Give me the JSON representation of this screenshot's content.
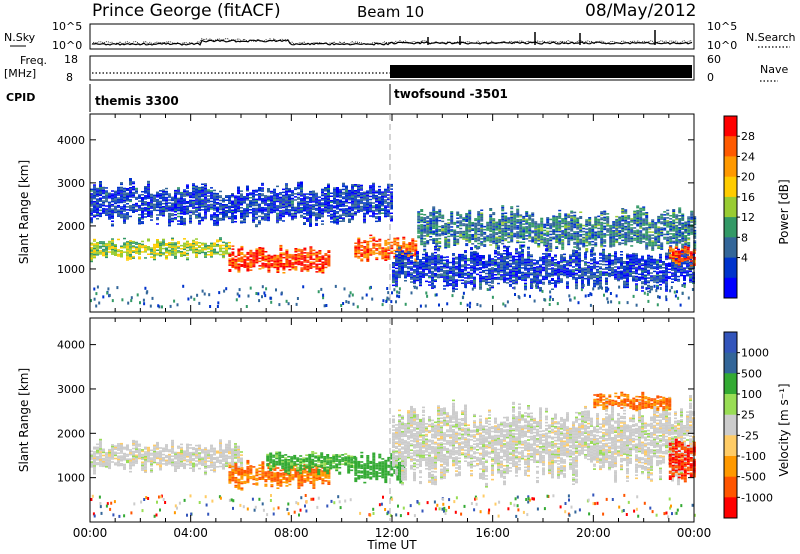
{
  "header": {
    "station": "Prince George (fitACF)",
    "beam": "Beam 10",
    "date": "08/May/2012"
  },
  "top_panels": {
    "nsky_label": "N.Sky",
    "nsearch_label": "N.Search",
    "freq_label_1": "Freq.",
    "freq_label_2": "[MHz]",
    "nave_label": "Nave",
    "cpid_label": "CPID",
    "noise_left_ticks": [
      "10^5",
      "10^0"
    ],
    "noise_right_ticks": [
      "10^5",
      "10^0"
    ],
    "freq_ticks": [
      "18",
      "8"
    ],
    "nave_ticks": [
      "60",
      "0"
    ],
    "cpid_segments": [
      {
        "name": "themis 3300",
        "start_hour": 0,
        "end_hour": 12
      },
      {
        "name": "twofsound -3501",
        "start_hour": 12,
        "end_hour": 24
      }
    ]
  },
  "chart_data": [
    {
      "type": "heatmap",
      "panel": "power",
      "xlabel": "",
      "ylabel": "Slant Range [km]",
      "xlim_hours": [
        0,
        24
      ],
      "ylim_km": [
        0,
        4600
      ],
      "yticks": [
        "1000",
        "2000",
        "3000",
        "4000"
      ],
      "colorbar": {
        "label": "Power [dB]",
        "ticks": [
          "28",
          "24",
          "20",
          "16",
          "12",
          "8",
          "4"
        ],
        "colors": [
          "#ff0000",
          "#ff5a00",
          "#ff9900",
          "#ffcc00",
          "#99cc33",
          "#339966",
          "#336699",
          "#0033cc",
          "#0000ff"
        ]
      },
      "bands": [
        {
          "start_hour": 0,
          "end_hour": 5.5,
          "center_km": 1450,
          "width_km": 250,
          "level_db": 16
        },
        {
          "start_hour": 5.5,
          "end_hour": 9.5,
          "center_km": 1200,
          "width_km": 300,
          "level_db": 28
        },
        {
          "start_hour": 10.5,
          "end_hour": 13,
          "center_km": 1450,
          "width_km": 300,
          "level_db": 26
        },
        {
          "start_hour": 13,
          "end_hour": 24,
          "center_km": 1900,
          "width_km": 500,
          "level_db": 10
        },
        {
          "start_hour": 0,
          "end_hour": 12,
          "center_km": 2500,
          "width_km": 500,
          "level_db": 6
        },
        {
          "start_hour": 12,
          "end_hour": 24,
          "center_km": 1000,
          "width_km": 500,
          "level_db": 6
        },
        {
          "start_hour": 23,
          "end_hour": 24,
          "center_km": 1300,
          "width_km": 250,
          "level_db": 26
        }
      ]
    },
    {
      "type": "heatmap",
      "panel": "velocity",
      "xlabel": "Time UT",
      "ylabel": "Slant Range [km]",
      "xlim_hours": [
        0,
        24
      ],
      "ylim_km": [
        0,
        4600
      ],
      "xticks": [
        "00:00",
        "04:00",
        "08:00",
        "12:00",
        "16:00",
        "20:00",
        "00:00"
      ],
      "yticks": [
        "1000",
        "2000",
        "3000",
        "4000"
      ],
      "colorbar": {
        "label": "Velocity [m s⁻¹]",
        "ticks": [
          "1000",
          "500",
          "100",
          "25",
          "-25",
          "-100",
          "-500",
          "-1000"
        ],
        "colors": [
          "#3355bb",
          "#336699",
          "#33aa33",
          "#99dd55",
          "#cccccc",
          "#ffcc66",
          "#ff9900",
          "#ff5500",
          "#ff0000"
        ]
      },
      "bands": [
        {
          "start_hour": 0,
          "end_hour": 6,
          "center_km": 1450,
          "width_km": 350,
          "velocity": 0
        },
        {
          "start_hour": 5.5,
          "end_hour": 9.5,
          "center_km": 1050,
          "width_km": 300,
          "velocity": -500
        },
        {
          "start_hour": 7,
          "end_hour": 10.5,
          "center_km": 1350,
          "width_km": 250,
          "velocity": 200
        },
        {
          "start_hour": 10.5,
          "end_hour": 12.5,
          "center_km": 1200,
          "width_km": 350,
          "velocity": 300
        },
        {
          "start_hour": 12,
          "end_hour": 24,
          "center_km": 1800,
          "width_km": 900,
          "velocity": 0
        },
        {
          "start_hour": 20,
          "end_hour": 23,
          "center_km": 2700,
          "width_km": 200,
          "velocity": -500
        },
        {
          "start_hour": 23,
          "end_hour": 24,
          "center_km": 1400,
          "width_km": 500,
          "velocity": -1000
        }
      ]
    }
  ]
}
